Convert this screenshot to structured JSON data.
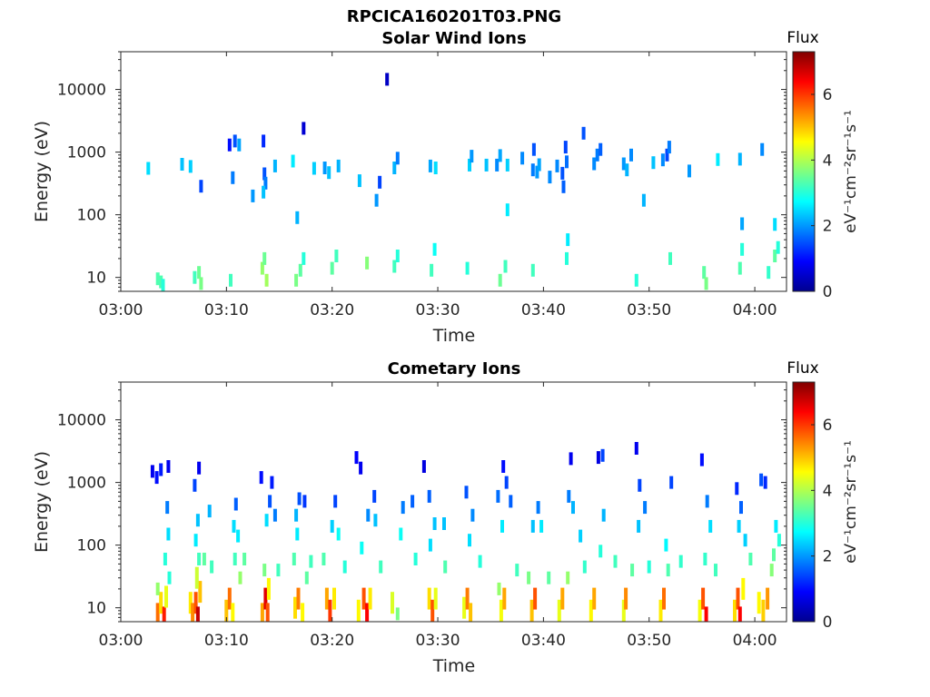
{
  "figure_title": "RPCICA160201T03.PNG",
  "chart_data": [
    {
      "type": "heatmap",
      "title": "Solar Wind Ions",
      "xlabel": "Time",
      "ylabel": "Energy (eV)",
      "xlim": [
        "03:00",
        "04:03"
      ],
      "xticks": [
        "03:00",
        "03:10",
        "03:20",
        "03:30",
        "03:40",
        "03:50",
        "04:00"
      ],
      "ylim": [
        6,
        40000
      ],
      "yscale": "log",
      "yticks": [
        {
          "value": 10,
          "label": "10"
        },
        {
          "value": 100,
          "label": "100"
        },
        {
          "value": 1000,
          "label": "1000"
        },
        {
          "value": 10000,
          "label": "10000"
        }
      ],
      "colorbar": {
        "title": "Flux",
        "label": "eV⁻¹cm⁻²sr⁻¹s⁻¹",
        "min": 0,
        "max": 7.3,
        "ticks": [
          0,
          2,
          4,
          6
        ],
        "colormap": "jet"
      },
      "grid": false,
      "cells": [
        [
          2.6,
          550,
          2.5
        ],
        [
          5.8,
          640,
          2.3
        ],
        [
          6.6,
          590,
          2.4
        ],
        [
          7.6,
          285,
          1.4
        ],
        [
          10.3,
          1300,
          1.0
        ],
        [
          10.8,
          1500,
          1.5
        ],
        [
          11.2,
          1300,
          2.1
        ],
        [
          10.6,
          390,
          1.8
        ],
        [
          12.5,
          200,
          2.0
        ],
        [
          13.5,
          1500,
          1.2
        ],
        [
          13.6,
          450,
          1.5
        ],
        [
          13.7,
          320,
          1.8
        ],
        [
          13.5,
          230,
          2.3
        ],
        [
          14.6,
          600,
          2.2
        ],
        [
          16.3,
          720,
          2.6
        ],
        [
          16.7,
          90,
          2.2
        ],
        [
          17.3,
          2400,
          0.6
        ],
        [
          18.3,
          550,
          2.4
        ],
        [
          19.3,
          560,
          2.0
        ],
        [
          19.7,
          470,
          2.3
        ],
        [
          20.6,
          600,
          2.2
        ],
        [
          22.6,
          350,
          2.3
        ],
        [
          24.2,
          170,
          2.0
        ],
        [
          24.5,
          330,
          1.4
        ],
        [
          25.2,
          14500,
          0.5
        ],
        [
          25.9,
          560,
          2.2
        ],
        [
          26.2,
          800,
          1.8
        ],
        [
          29.3,
          600,
          2.1
        ],
        [
          29.8,
          560,
          2.5
        ],
        [
          33.0,
          620,
          2.4
        ],
        [
          33.2,
          860,
          2.0
        ],
        [
          34.6,
          620,
          2.3
        ],
        [
          35.6,
          620,
          1.9
        ],
        [
          35.9,
          880,
          2.1
        ],
        [
          36.6,
          620,
          2.4
        ],
        [
          38.0,
          800,
          1.9
        ],
        [
          39.0,
          520,
          1.8
        ],
        [
          39.1,
          1100,
          1.5
        ],
        [
          39.4,
          480,
          2.0
        ],
        [
          40.6,
          400,
          1.9
        ],
        [
          41.3,
          600,
          1.9
        ],
        [
          41.8,
          460,
          1.5
        ],
        [
          42.1,
          1200,
          1.4
        ],
        [
          42.2,
          700,
          1.7
        ],
        [
          43.8,
          2000,
          1.5
        ],
        [
          45.1,
          900,
          1.8
        ],
        [
          45.4,
          1100,
          1.6
        ],
        [
          44.8,
          650,
          1.9
        ],
        [
          47.6,
          650,
          2.0
        ],
        [
          48.3,
          900,
          1.9
        ],
        [
          47.9,
          520,
          2.2
        ],
        [
          49.5,
          170,
          2.2
        ],
        [
          50.4,
          680,
          2.3
        ],
        [
          51.3,
          750,
          1.9
        ],
        [
          51.7,
          900,
          1.4
        ],
        [
          51.9,
          1200,
          1.8
        ],
        [
          53.8,
          500,
          2.0
        ],
        [
          56.5,
          760,
          2.6
        ],
        [
          58.6,
          770,
          2.2
        ],
        [
          58.8,
          72,
          2.1
        ],
        [
          60.7,
          1100,
          1.9
        ],
        [
          61.9,
          70,
          2.5
        ],
        [
          36.6,
          120,
          2.6
        ],
        [
          39.6,
          630,
          2.1
        ],
        [
          41.9,
          280,
          1.6
        ],
        [
          3.5,
          9.5,
          3.3
        ],
        [
          3.8,
          8.5,
          3.3
        ],
        [
          4.0,
          7.5,
          3.0
        ],
        [
          7.0,
          10,
          3.2
        ],
        [
          7.4,
          12,
          3.5
        ],
        [
          7.6,
          8,
          3.6
        ],
        [
          10.4,
          9,
          3.2
        ],
        [
          13.4,
          14,
          3.8
        ],
        [
          13.6,
          20,
          3.5
        ],
        [
          13.8,
          9,
          3.9
        ],
        [
          16.6,
          9,
          3.6
        ],
        [
          17.0,
          13,
          3.4
        ],
        [
          17.3,
          20,
          3.0
        ],
        [
          20.0,
          14,
          3.4
        ],
        [
          20.4,
          22,
          3.2
        ],
        [
          23.3,
          17,
          3.7
        ],
        [
          25.9,
          15,
          3.2
        ],
        [
          26.2,
          22,
          3.0
        ],
        [
          29.4,
          13,
          3.2
        ],
        [
          29.7,
          28,
          2.8
        ],
        [
          32.8,
          14,
          3.0
        ],
        [
          35.9,
          9,
          3.5
        ],
        [
          36.4,
          15,
          3.2
        ],
        [
          39.0,
          13,
          3.2
        ],
        [
          42.2,
          20,
          3.0
        ],
        [
          42.3,
          40,
          2.6
        ],
        [
          48.8,
          9,
          3.0
        ],
        [
          52.0,
          20,
          3.2
        ],
        [
          55.2,
          12,
          3.4
        ],
        [
          55.4,
          8,
          3.6
        ],
        [
          58.6,
          14,
          3.3
        ],
        [
          58.8,
          28,
          3.0
        ],
        [
          61.3,
          12,
          3.1
        ],
        [
          61.9,
          22,
          3.4
        ],
        [
          62.2,
          30,
          3.0
        ]
      ]
    },
    {
      "type": "heatmap",
      "title": "Cometary Ions",
      "xlabel": "Time",
      "ylabel": "Energy (eV)",
      "xlim": [
        "03:00",
        "04:03"
      ],
      "xticks": [
        "03:00",
        "03:10",
        "03:20",
        "03:30",
        "03:40",
        "03:50",
        "04:00"
      ],
      "ylim": [
        6,
        40000
      ],
      "yscale": "log",
      "yticks": [
        {
          "value": 10,
          "label": "10"
        },
        {
          "value": 100,
          "label": "100"
        },
        {
          "value": 1000,
          "label": "1000"
        },
        {
          "value": 10000,
          "label": "10000"
        }
      ],
      "colorbar": {
        "title": "Flux",
        "label": "eV⁻¹cm⁻²sr⁻¹s⁻¹",
        "min": 0,
        "max": 7.3,
        "ticks": [
          0,
          2,
          4,
          6
        ],
        "colormap": "jet"
      },
      "grid": false,
      "cells": [
        [
          3.5,
          8,
          5.6
        ],
        [
          3.8,
          12,
          4.8
        ],
        [
          4.1,
          7,
          6.2
        ],
        [
          4.3,
          15,
          4.4
        ],
        [
          3.5,
          20,
          3.8
        ],
        [
          4.2,
          60,
          3.0
        ],
        [
          4.5,
          150,
          2.5
        ],
        [
          3.0,
          1500,
          0.8
        ],
        [
          3.4,
          1200,
          1.0
        ],
        [
          3.8,
          1600,
          1.1
        ],
        [
          4.5,
          1800,
          0.8
        ],
        [
          4.4,
          400,
          1.8
        ],
        [
          6.6,
          12,
          4.7
        ],
        [
          6.8,
          8,
          5.4
        ],
        [
          7.1,
          12,
          5.8
        ],
        [
          7.3,
          7,
          6.8
        ],
        [
          7.5,
          18,
          5.0
        ],
        [
          7.2,
          30,
          4.2
        ],
        [
          7.4,
          60,
          3.2
        ],
        [
          7.1,
          120,
          2.6
        ],
        [
          7.3,
          250,
          2.3
        ],
        [
          7.0,
          900,
          1.4
        ],
        [
          7.4,
          1700,
          0.8
        ],
        [
          7.9,
          60,
          3.4
        ],
        [
          8.4,
          350,
          2.2
        ],
        [
          10.0,
          9,
          5.0
        ],
        [
          10.3,
          14,
          5.6
        ],
        [
          10.6,
          8,
          4.6
        ],
        [
          10.8,
          60,
          3.2
        ],
        [
          11.3,
          30,
          3.8
        ],
        [
          10.7,
          200,
          2.5
        ],
        [
          10.9,
          450,
          1.6
        ],
        [
          11.1,
          140,
          2.6
        ],
        [
          13.4,
          8,
          5.2
        ],
        [
          13.7,
          14,
          6.6
        ],
        [
          13.9,
          8,
          5.8
        ],
        [
          14.0,
          20,
          4.6
        ],
        [
          13.6,
          40,
          3.6
        ],
        [
          13.8,
          250,
          2.5
        ],
        [
          14.1,
          500,
          1.5
        ],
        [
          14.6,
          300,
          1.8
        ],
        [
          14.3,
          1000,
          1.1
        ],
        [
          13.3,
          1200,
          1.0
        ],
        [
          16.5,
          10,
          4.8
        ],
        [
          16.8,
          14,
          5.5
        ],
        [
          17.2,
          8,
          4.6
        ],
        [
          16.6,
          300,
          2.2
        ],
        [
          16.7,
          150,
          2.6
        ],
        [
          16.9,
          550,
          1.5
        ],
        [
          17.4,
          500,
          1.3
        ],
        [
          16.4,
          60,
          3.3
        ],
        [
          17.6,
          30,
          3.4
        ],
        [
          19.5,
          14,
          5.2
        ],
        [
          19.8,
          9,
          6.0
        ],
        [
          20.2,
          14,
          4.7
        ],
        [
          20.0,
          200,
          2.4
        ],
        [
          20.3,
          500,
          1.4
        ],
        [
          20.6,
          150,
          2.8
        ],
        [
          19.2,
          60,
          3.3
        ],
        [
          22.5,
          9,
          4.6
        ],
        [
          23.0,
          14,
          5.8
        ],
        [
          23.3,
          8,
          6.4
        ],
        [
          23.6,
          14,
          4.7
        ],
        [
          22.8,
          90,
          2.8
        ],
        [
          23.4,
          300,
          1.9
        ],
        [
          22.3,
          2500,
          0.9
        ],
        [
          22.7,
          1700,
          0.8
        ],
        [
          24.0,
          600,
          1.4
        ],
        [
          24.1,
          250,
          2.3
        ],
        [
          25.7,
          12,
          4.3
        ],
        [
          26.2,
          8,
          3.6
        ],
        [
          26.5,
          150,
          2.8
        ],
        [
          26.7,
          400,
          1.8
        ],
        [
          27.6,
          500,
          1.6
        ],
        [
          29.2,
          14,
          4.8
        ],
        [
          29.5,
          9,
          5.8
        ],
        [
          29.8,
          14,
          4.4
        ],
        [
          29.3,
          100,
          2.5
        ],
        [
          29.7,
          220,
          2.3
        ],
        [
          28.7,
          1800,
          0.7
        ],
        [
          29.2,
          600,
          1.6
        ],
        [
          30.6,
          220,
          2.3
        ],
        [
          32.5,
          10,
          4.4
        ],
        [
          32.8,
          14,
          5.5
        ],
        [
          33.1,
          8,
          5.0
        ],
        [
          33.0,
          120,
          2.5
        ],
        [
          33.3,
          300,
          1.9
        ],
        [
          32.7,
          700,
          1.5
        ],
        [
          36.0,
          9,
          4.5
        ],
        [
          36.3,
          14,
          5.2
        ],
        [
          35.8,
          20,
          3.8
        ],
        [
          36.1,
          200,
          2.6
        ],
        [
          36.2,
          1800,
          1.0
        ],
        [
          35.7,
          600,
          1.7
        ],
        [
          36.9,
          500,
          1.6
        ],
        [
          36.5,
          1000,
          1.4
        ],
        [
          38.9,
          9,
          5.0
        ],
        [
          39.2,
          14,
          5.8
        ],
        [
          38.6,
          30,
          3.6
        ],
        [
          39.0,
          200,
          2.3
        ],
        [
          39.5,
          400,
          1.8
        ],
        [
          39.8,
          200,
          2.6
        ],
        [
          41.5,
          9,
          4.4
        ],
        [
          41.8,
          14,
          5.2
        ],
        [
          42.3,
          30,
          3.8
        ],
        [
          42.6,
          2400,
          0.8
        ],
        [
          42.4,
          600,
          1.8
        ],
        [
          42.8,
          400,
          2.2
        ],
        [
          43.5,
          140,
          2.4
        ],
        [
          44.5,
          9,
          4.6
        ],
        [
          44.8,
          14,
          5.2
        ],
        [
          45.2,
          2500,
          0.7
        ],
        [
          45.6,
          2700,
          1.4
        ],
        [
          45.4,
          80,
          3.0
        ],
        [
          45.7,
          300,
          2.2
        ],
        [
          47.6,
          9,
          4.4
        ],
        [
          47.8,
          14,
          5.4
        ],
        [
          48.4,
          40,
          3.4
        ],
        [
          48.8,
          3500,
          0.8
        ],
        [
          49.1,
          900,
          1.4
        ],
        [
          49.0,
          200,
          2.3
        ],
        [
          49.6,
          400,
          1.8
        ],
        [
          51.1,
          9,
          4.7
        ],
        [
          51.4,
          14,
          5.6
        ],
        [
          51.8,
          40,
          3.3
        ],
        [
          52.1,
          1000,
          1.4
        ],
        [
          51.6,
          100,
          2.7
        ],
        [
          54.8,
          9,
          4.5
        ],
        [
          55.1,
          14,
          5.8
        ],
        [
          55.4,
          7,
          6.4
        ],
        [
          55.0,
          2300,
          1.0
        ],
        [
          55.5,
          500,
          1.8
        ],
        [
          55.8,
          200,
          2.5
        ],
        [
          55.3,
          60,
          3.1
        ],
        [
          58.1,
          9,
          4.8
        ],
        [
          58.4,
          14,
          5.8
        ],
        [
          58.6,
          7,
          6.4
        ],
        [
          58.9,
          20,
          4.6
        ],
        [
          58.5,
          200,
          2.4
        ],
        [
          58.7,
          400,
          1.6
        ],
        [
          59.1,
          120,
          2.4
        ],
        [
          58.3,
          800,
          1.2
        ],
        [
          60.4,
          12,
          4.6
        ],
        [
          60.8,
          9,
          4.9
        ],
        [
          61.2,
          14,
          5.3
        ],
        [
          61.6,
          40,
          3.7
        ],
        [
          62.0,
          200,
          2.6
        ],
        [
          62.3,
          120,
          3.0
        ],
        [
          60.6,
          1100,
          1.5
        ],
        [
          61.0,
          1000,
          1.2
        ],
        [
          61.8,
          70,
          3.4
        ],
        [
          4.6,
          30,
          3.0
        ],
        [
          8.6,
          45,
          3.2
        ],
        [
          11.7,
          60,
          3.4
        ],
        [
          14.9,
          40,
          3.2
        ],
        [
          18.0,
          55,
          3.2
        ],
        [
          21.2,
          45,
          3.0
        ],
        [
          24.6,
          45,
          3.2
        ],
        [
          27.9,
          60,
          3.0
        ],
        [
          30.7,
          45,
          3.3
        ],
        [
          34.0,
          55,
          3.0
        ],
        [
          37.5,
          40,
          3.2
        ],
        [
          40.5,
          30,
          3.4
        ],
        [
          43.9,
          45,
          3.1
        ],
        [
          46.8,
          55,
          3.2
        ],
        [
          50.0,
          45,
          3.0
        ],
        [
          53.0,
          55,
          3.1
        ],
        [
          56.3,
          40,
          3.2
        ],
        [
          59.6,
          60,
          3.3
        ]
      ]
    }
  ]
}
